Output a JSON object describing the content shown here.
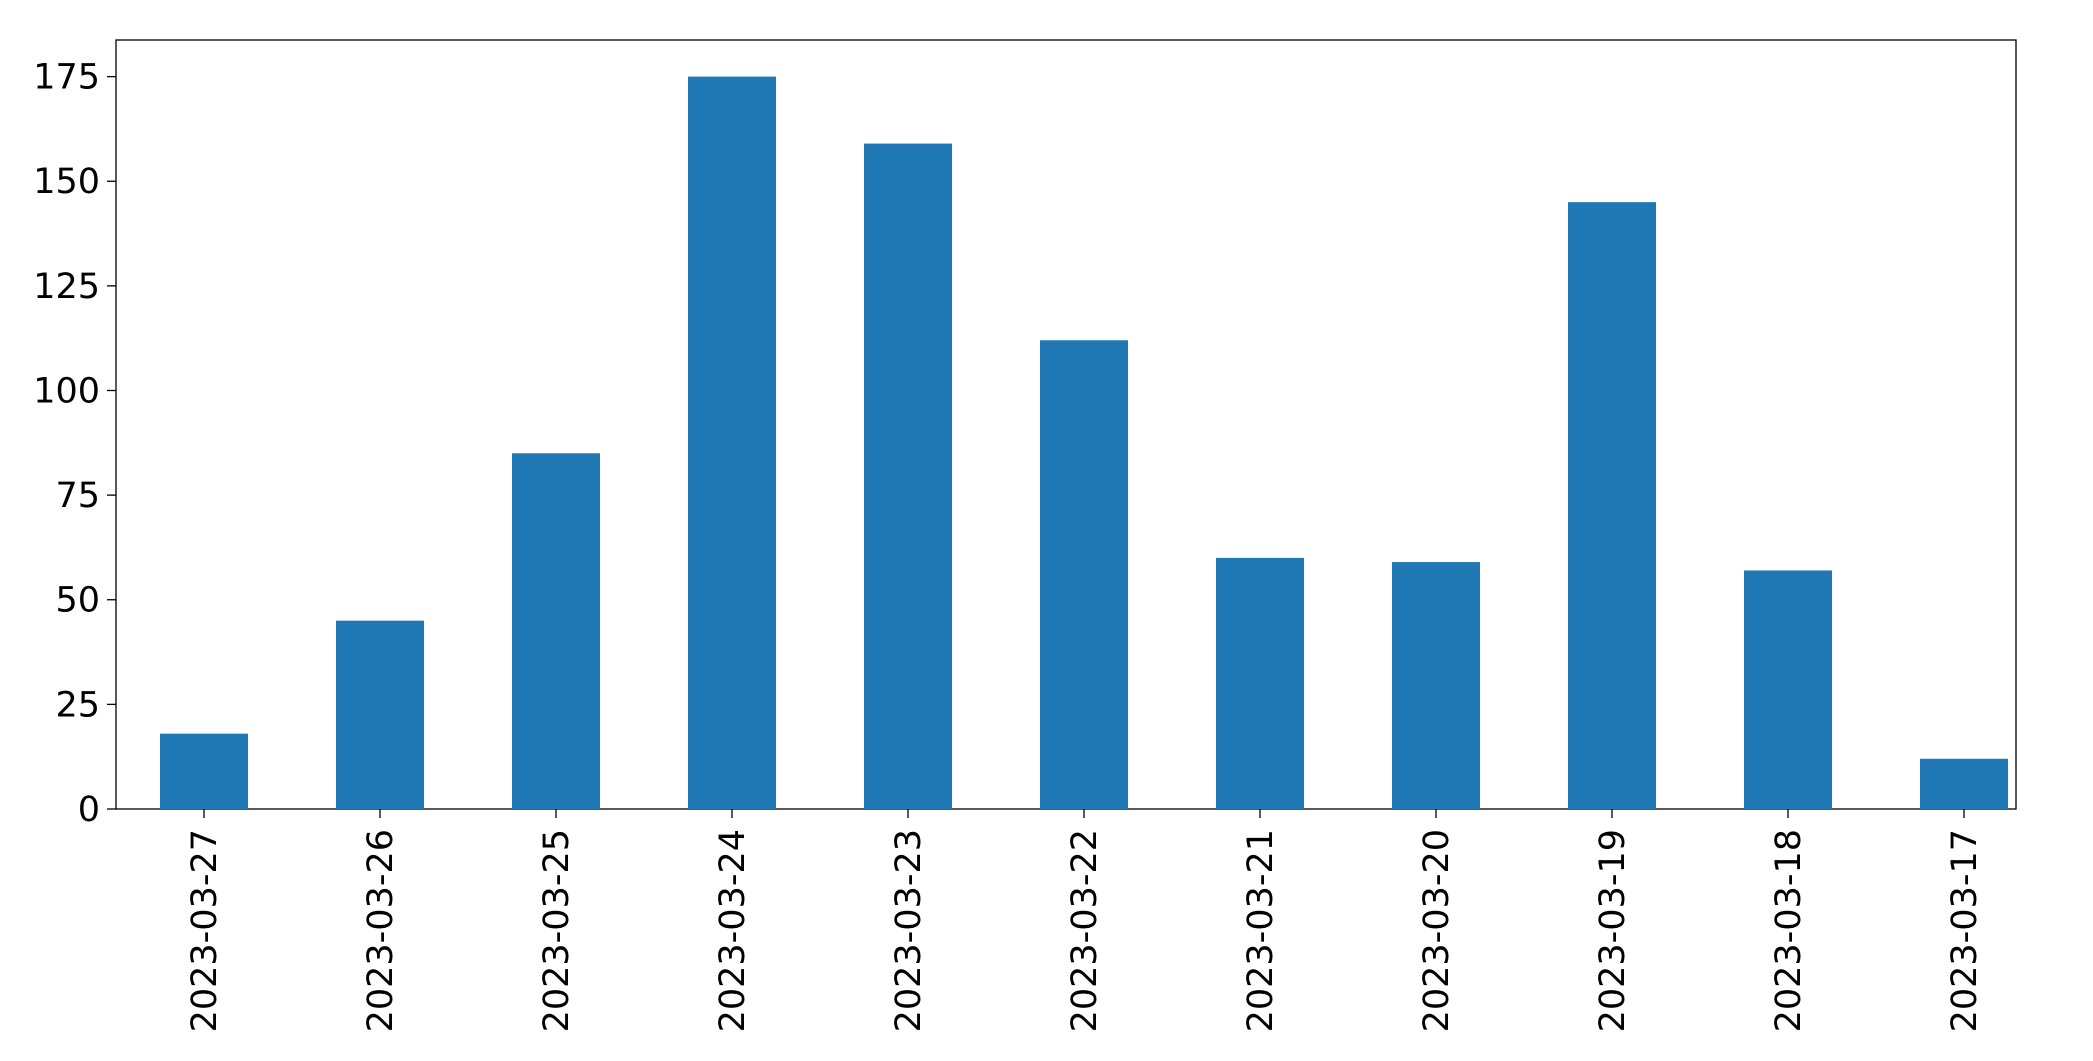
{
  "chart_data": {
    "type": "bar",
    "categories": [
      "2023-03-27",
      "2023-03-26",
      "2023-03-25",
      "2023-03-24",
      "2023-03-23",
      "2023-03-22",
      "2023-03-21",
      "2023-03-20",
      "2023-03-19",
      "2023-03-18",
      "2023-03-17"
    ],
    "values": [
      18,
      45,
      85,
      175,
      159,
      112,
      60,
      59,
      145,
      57,
      12
    ],
    "color": "#1f77b4",
    "ylim": [
      0,
      183.75
    ],
    "yticks": [
      0,
      25,
      50,
      75,
      100,
      125,
      150,
      175
    ],
    "grid": false
  }
}
